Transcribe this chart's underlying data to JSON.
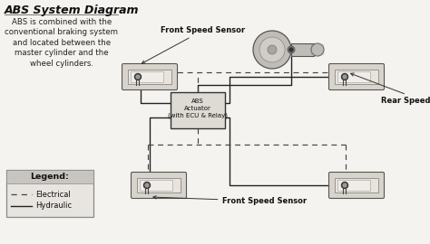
{
  "title": "ABS System Diagram",
  "description": "ABS is combined with the\nconventional braking system\nand located between the\nmaster cylinder and the\nwheel cylinders.",
  "bg_color": "#f5f3ef",
  "legend_title": "Legend:",
  "legend_electrical": "Electrical",
  "legend_hydraulic": "Hydraulic",
  "label_front_speed_top": "Front Speed Sensor",
  "label_rear_speed": "Rear Speed Sensors",
  "label_front_speed_bot": "Front Speed Sensor",
  "label_abs_actuator": "ABS\nActuator\n(with ECU & Relay)",
  "title_fontsize": 9,
  "body_fontsize": 6.2,
  "diagram_fontsize": 6.0,
  "wheel_fill": "#d8d4cc",
  "wheel_inner_fill": "#e8e4dc",
  "box_edge_color": "#555555",
  "dashed_color": "#444444",
  "solid_color": "#222222",
  "legend_bg_header": "#c8c5c0",
  "legend_bg_body": "#e8e5e0",
  "abs_box_fill": "#dedad4",
  "booster_fill": "#c0bcb6",
  "booster_inner": "#d0ccc6"
}
